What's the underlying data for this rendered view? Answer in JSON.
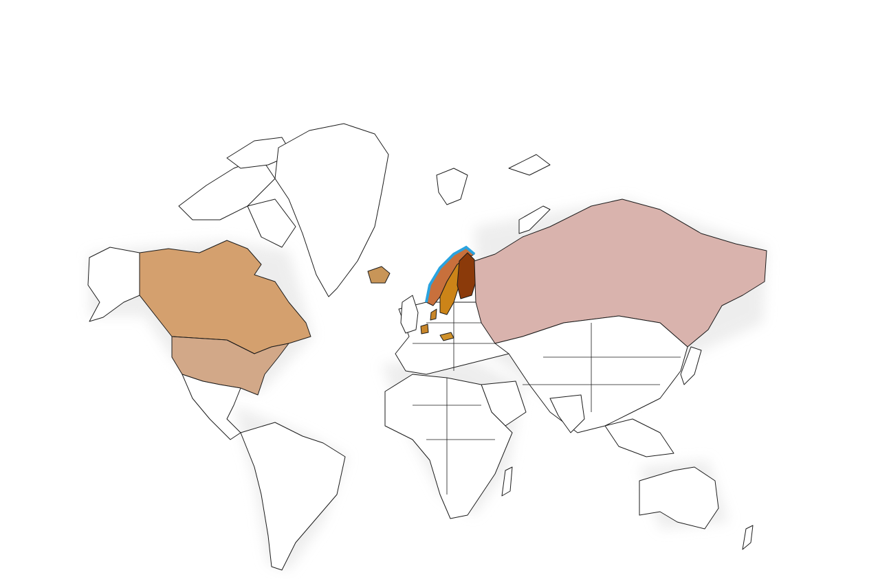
{
  "map": {
    "projection": "mercator",
    "background_color": "#ffffff",
    "land_color": "#ffffff",
    "outline_color": "#1a1a1a",
    "highlighted_regions": [
      {
        "region": "canada",
        "color": "#d4a06e"
      },
      {
        "region": "united-states",
        "color": "#d2a888"
      },
      {
        "region": "iceland",
        "color": "#c89558"
      },
      {
        "region": "norway",
        "color": "#c8703c"
      },
      {
        "region": "sweden",
        "color": "#cc8418"
      },
      {
        "region": "finland",
        "color": "#8b3a0a"
      },
      {
        "region": "russia",
        "color": "#d9b3ad"
      },
      {
        "region": "denmark",
        "color": "#c8862a"
      },
      {
        "region": "netherlands",
        "color": "#c8862a"
      },
      {
        "region": "czechia",
        "color": "#d0922c"
      }
    ],
    "emphasis_outline": {
      "region": "norway-coast",
      "color": "#2aa3df"
    }
  }
}
